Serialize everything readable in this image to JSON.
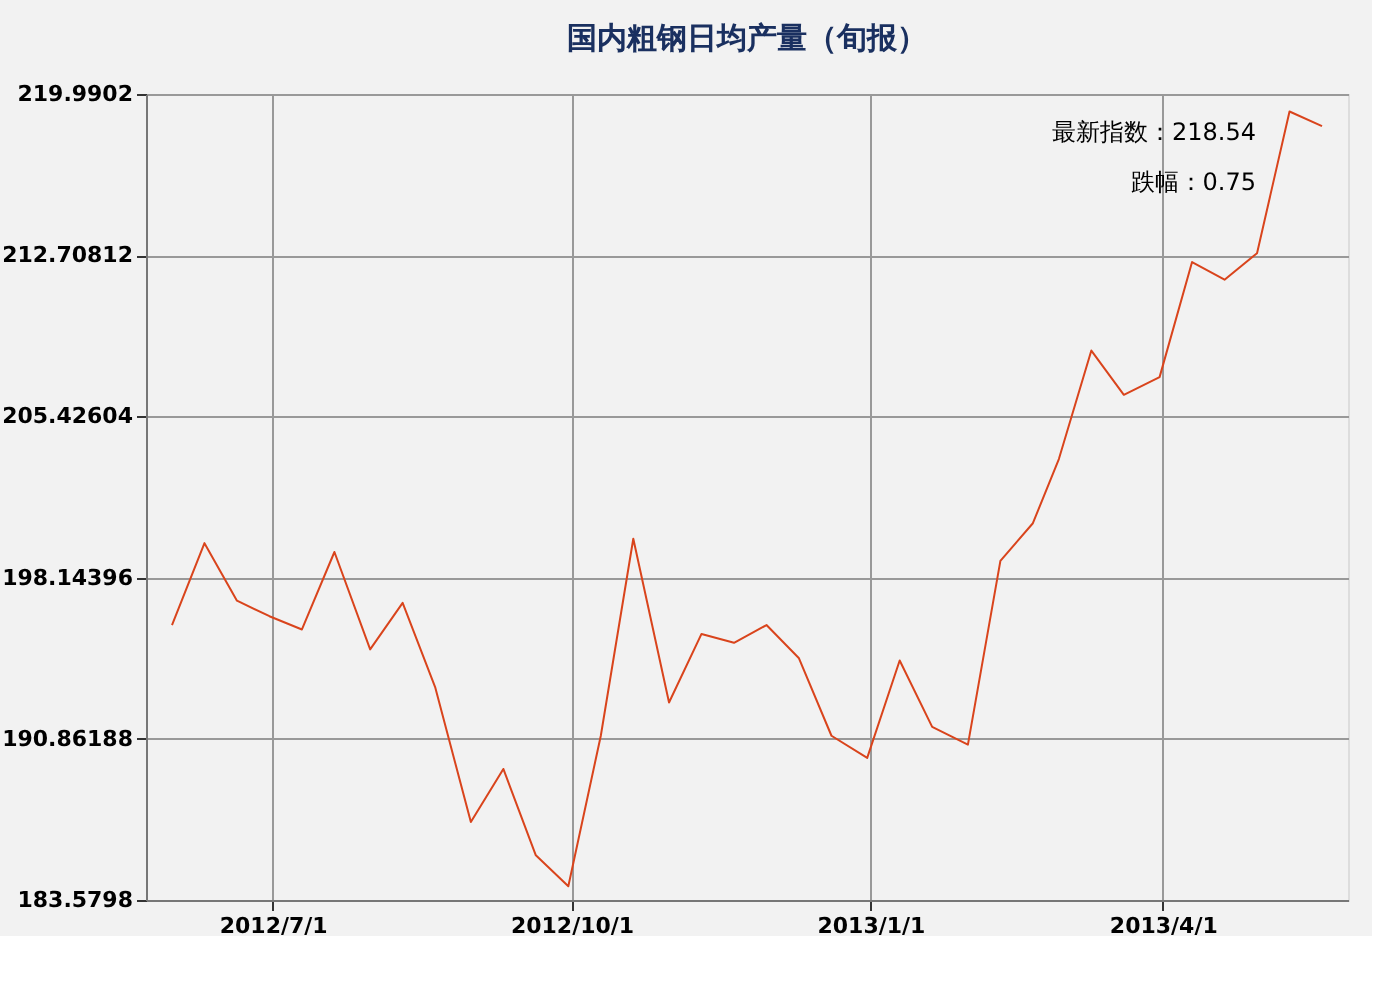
{
  "chart_data": {
    "type": "line",
    "title": "国内粗钢日均产量（旬报）",
    "x": [
      "2012-05-31",
      "2012-06-10",
      "2012-06-20",
      "2012-06-30",
      "2012-07-10",
      "2012-07-20",
      "2012-07-31",
      "2012-08-10",
      "2012-08-20",
      "2012-08-31",
      "2012-09-10",
      "2012-09-20",
      "2012-09-30",
      "2012-10-10",
      "2012-10-20",
      "2012-10-31",
      "2012-11-10",
      "2012-11-20",
      "2012-11-30",
      "2012-12-10",
      "2012-12-20",
      "2012-12-31",
      "2013-01-10",
      "2013-01-20",
      "2013-01-31",
      "2013-02-10",
      "2013-02-20",
      "2013-02-28",
      "2013-03-10",
      "2013-03-20",
      "2013-03-31",
      "2013-04-10",
      "2013-04-20",
      "2013-04-30",
      "2013-05-10",
      "2013-05-20"
    ],
    "series": [
      {
        "color": "#d9441c",
        "values": [
          196.0,
          199.7,
          197.1,
          196.4,
          195.8,
          199.3,
          194.9,
          197.0,
          193.2,
          187.1,
          189.5,
          185.6,
          184.2,
          191.0,
          199.9,
          192.5,
          195.6,
          195.2,
          196.0,
          194.5,
          191.0,
          190.0,
          194.4,
          191.4,
          190.6,
          198.9,
          200.6,
          203.5,
          208.4,
          206.4,
          207.2,
          212.4,
          211.6,
          212.8,
          219.2,
          218.54
        ]
      }
    ],
    "xlim": [
      "2012-05-23",
      "2013-05-28"
    ],
    "xticks": [
      {
        "value": "2012-07-01",
        "label": "2012/7/1"
      },
      {
        "value": "2012-10-01",
        "label": "2012/10/1"
      },
      {
        "value": "2013-01-01",
        "label": "2013/1/1"
      },
      {
        "value": "2013-04-01",
        "label": "2013/4/1"
      }
    ],
    "ylim": [
      183.5798,
      219.9902
    ],
    "yticks": [
      183.5798,
      190.86188,
      198.14396,
      205.42604,
      212.70812,
      219.9902
    ],
    "annotations": [
      "最新指数：218.54",
      "跌幅：0.75"
    ],
    "grid": true,
    "marker": "none",
    "line_style": "solid"
  }
}
